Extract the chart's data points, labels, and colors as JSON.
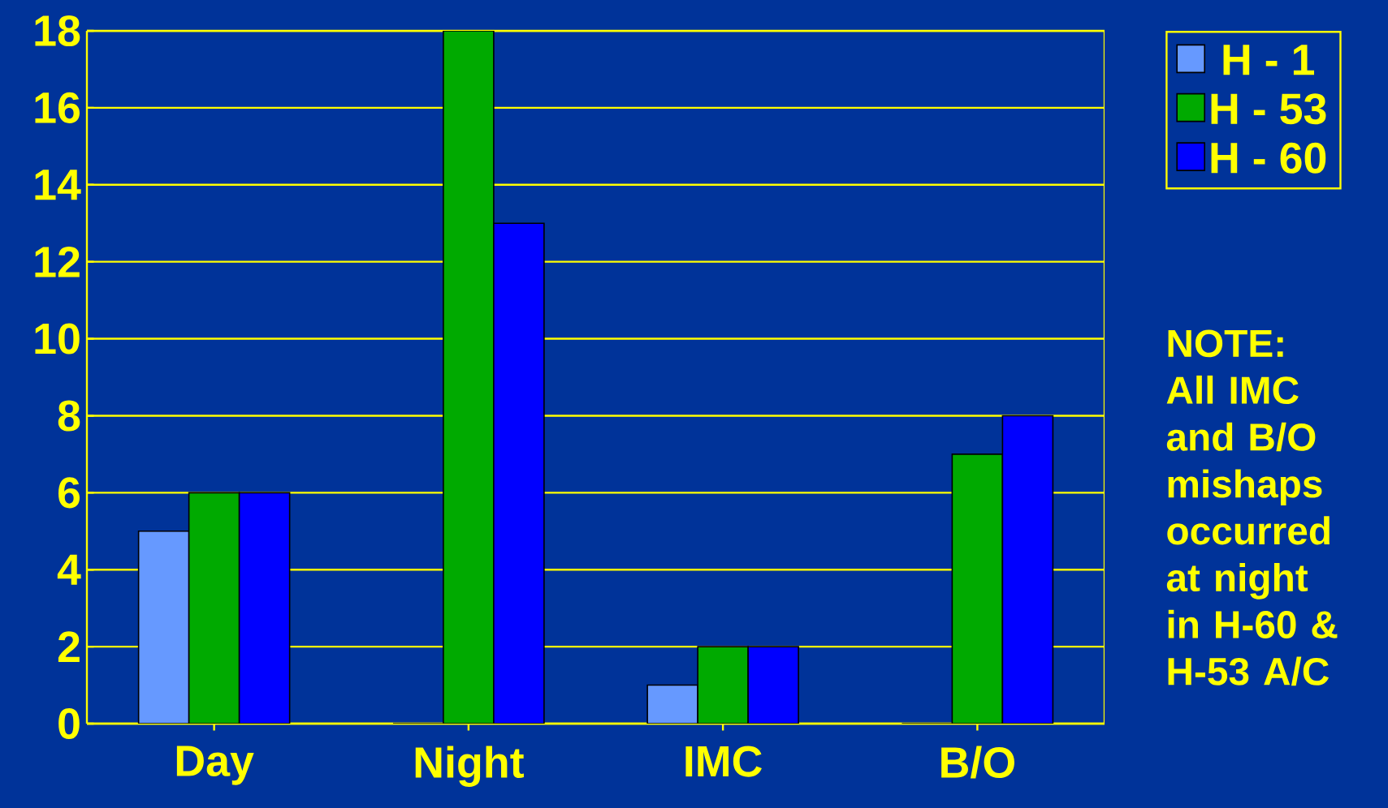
{
  "chart_data": {
    "type": "bar",
    "categories": [
      "Day",
      "Night",
      "IMC",
      "B/O"
    ],
    "series": [
      {
        "name": "H - 1",
        "color": "#6699ff",
        "values": [
          5,
          0,
          1,
          0
        ]
      },
      {
        "name": "H - 53",
        "color": "#00aa00",
        "values": [
          6,
          18,
          2,
          7
        ]
      },
      {
        "name": "H - 60",
        "color": "#0000ff",
        "values": [
          6,
          13,
          2,
          8
        ]
      }
    ],
    "ylim": [
      0,
      18
    ],
    "yticks": [
      0,
      2,
      4,
      6,
      8,
      10,
      12,
      14,
      16,
      18
    ],
    "grid": "y",
    "legend": "top right",
    "annotations": [
      "NOTE: All IMC and B/O mishaps occurred at night in H-60 & H-53 A/C"
    ]
  }
}
